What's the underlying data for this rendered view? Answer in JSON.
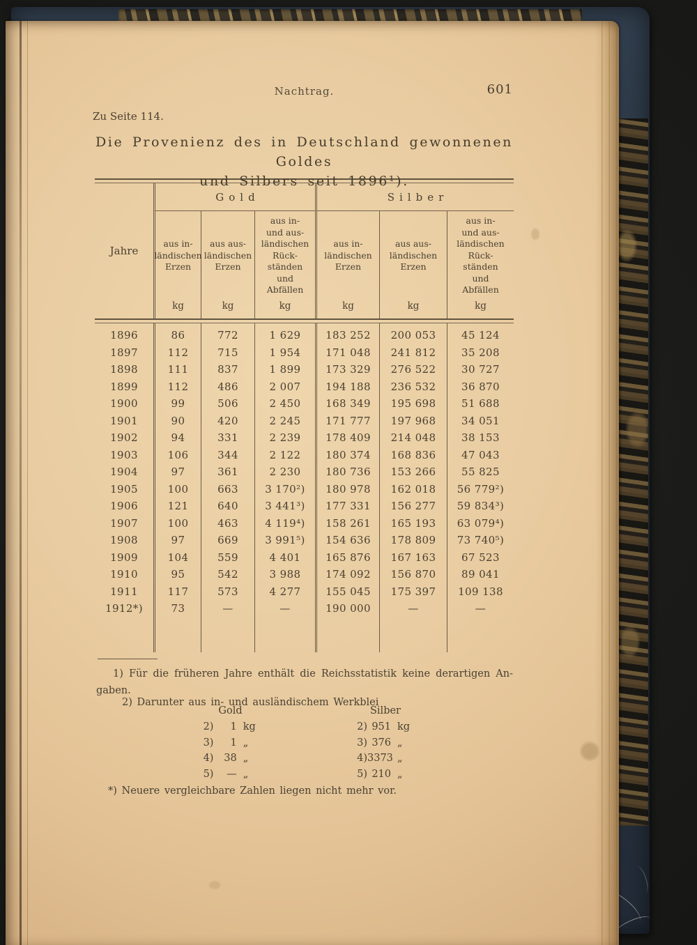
{
  "page": {
    "running_title": "Nachtrag.",
    "page_number": "601",
    "reference": "Zu Seite 114.",
    "title_line1": "Die Provenienz des in Deutschland gewonnenen Goldes",
    "title_line2": "und Silbers seit 1896¹)."
  },
  "table": {
    "year_label": "Jahre",
    "groups": [
      {
        "label": "Gold"
      },
      {
        "label": "Silber"
      }
    ],
    "subheaders": [
      "aus in-\nländischen\nErzen",
      "aus aus-\nländischen\nErzen",
      "aus in-\nund aus-\nländischen\nRück-\nständen\nund\nAbfällen",
      "aus in-\nländischen\nErzen",
      "aus aus-\nländischen\nErzen",
      "aus in-\nund aus-\nländischen\nRück-\nständen\nund\nAbfällen"
    ],
    "unit_row": [
      "kg",
      "kg",
      "kg",
      "kg",
      "kg",
      "kg"
    ],
    "rows": [
      [
        "1896",
        "86",
        "772",
        "1 629",
        "183 252",
        "200 053",
        "45 124"
      ],
      [
        "1897",
        "112",
        "715",
        "1 954",
        "171 048",
        "241 812",
        "35 208"
      ],
      [
        "1898",
        "111",
        "837",
        "1 899",
        "173 329",
        "276 522",
        "30 727"
      ],
      [
        "1899",
        "112",
        "486",
        "2 007",
        "194 188",
        "236 532",
        "36 870"
      ],
      [
        "1900",
        "99",
        "506",
        "2 450",
        "168 349",
        "195 698",
        "51 688"
      ],
      [
        "1901",
        "90",
        "420",
        "2 245",
        "171 777",
        "197 968",
        "34 051"
      ],
      [
        "1902",
        "94",
        "331",
        "2 239",
        "178 409",
        "214 048",
        "38 153"
      ],
      [
        "1903",
        "106",
        "344",
        "2 122",
        "180 374",
        "168 836",
        "47 043"
      ],
      [
        "1904",
        "97",
        "361",
        "2 230",
        "180 736",
        "153 266",
        "55 825"
      ],
      [
        "1905",
        "100",
        "663",
        "3 170²)",
        "180 978",
        "162 018",
        "56 779²)"
      ],
      [
        "1906",
        "121",
        "640",
        "3 441³)",
        "177 331",
        "156 277",
        "59 834³)"
      ],
      [
        "1907",
        "100",
        "463",
        "4 119⁴)",
        "158 261",
        "165 193",
        "63 079⁴)"
      ],
      [
        "1908",
        "97",
        "669",
        "3 991⁵)",
        "154 636",
        "178 809",
        "73 740⁵)"
      ],
      [
        "1909",
        "104",
        "559",
        "4 401",
        "165 876",
        "167 163",
        "67 523"
      ],
      [
        "1910",
        "95",
        "542",
        "3 988",
        "174 092",
        "156 870",
        "89 041"
      ],
      [
        "1911",
        "117",
        "573",
        "4 277",
        "155 045",
        "175 397",
        "109 138"
      ],
      [
        "1912*)",
        "73",
        "—",
        "—",
        "190 000",
        "—",
        "—"
      ]
    ]
  },
  "footnotes": {
    "fn1": "1) Für die früheren Jahre enthält die Reichsstatistik keine derartigen An-\ngaben.",
    "fn2_intro": "2) Darunter aus in- und ausländischem Werkblei",
    "werkblei": {
      "gold_label": "Gold",
      "silber_label": "Silber",
      "rows": [
        {
          "ref": "2)",
          "gold": "1",
          "gold_unit": "kg",
          "silber": "951",
          "silber_unit": "kg"
        },
        {
          "ref": "3)",
          "gold": "1",
          "gold_unit": "„",
          "silber": "376",
          "silber_unit": "„"
        },
        {
          "ref": "4)",
          "gold": "38",
          "gold_unit": "„",
          "silber": "3373",
          "silber_unit": "„"
        },
        {
          "ref": "5)",
          "gold": "—",
          "gold_unit": "„",
          "silber": "210",
          "silber_unit": "„"
        }
      ]
    },
    "star_note": "*) Neuere vergleichbare Zahlen liegen nicht mehr vor."
  },
  "colors": {
    "paper": "#e9cca1",
    "ink": "#483f30",
    "cover_navy": "#2b3644",
    "backdrop": "#191917",
    "marble_brown": "#57452a"
  }
}
